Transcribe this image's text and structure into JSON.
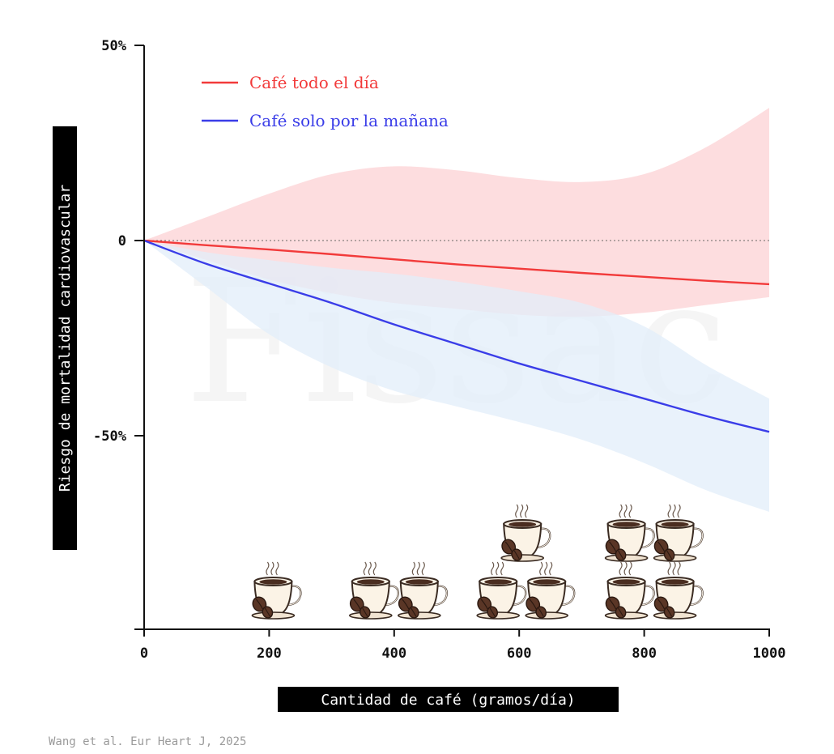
{
  "chart_data": {
    "type": "line",
    "xlabel": "Cantidad de café (gramos/día)",
    "ylabel": "Riesgo de mortalidad cardiovascular",
    "xlim": [
      0,
      1000
    ],
    "ylim": [
      -100,
      50
    ],
    "x_ticks": [
      0,
      200,
      400,
      600,
      800,
      1000
    ],
    "x_tick_labels": [
      "0",
      "200",
      "400",
      "600",
      "800",
      "1000"
    ],
    "y_ticks": [
      50,
      0,
      -50
    ],
    "y_tick_labels": [
      "50%",
      "0",
      "-50%"
    ],
    "reference_line": 0,
    "legend_position": "top-left",
    "series": [
      {
        "name": "Café todo el día",
        "color": "#f23a3a",
        "band_color": "#fdd9db",
        "x": [
          0,
          100,
          200,
          300,
          400,
          500,
          600,
          700,
          800,
          900,
          1000
        ],
        "values": [
          0,
          -1.2,
          -2.3,
          -3.5,
          -4.8,
          -6.1,
          -7.2,
          -8.3,
          -9.3,
          -10.3,
          -11.2
        ],
        "lower": [
          0,
          -5,
          -10,
          -13.5,
          -16,
          -17.5,
          -19,
          -19.5,
          -18.5,
          -16.5,
          -14.5
        ],
        "upper": [
          0,
          6,
          12,
          17,
          19,
          18,
          16,
          15,
          17,
          24,
          34
        ]
      },
      {
        "name": "Café solo por la mañana",
        "color": "#3a3de8",
        "band_color": "#e1edfa",
        "x": [
          0,
          100,
          200,
          300,
          400,
          500,
          600,
          700,
          800,
          900,
          1000
        ],
        "values": [
          0,
          -6,
          -11,
          -16,
          -21.5,
          -26.5,
          -31.5,
          -36,
          -40.5,
          -45,
          -49
        ],
        "lower": [
          0,
          -12,
          -24,
          -32.5,
          -38.5,
          -42.5,
          -46.5,
          -51,
          -57,
          -64,
          -69.5
        ],
        "upper": [
          0,
          -3,
          -5,
          -7,
          -8.5,
          -10.5,
          -13,
          -16,
          -22,
          -32,
          -40.5
        ]
      }
    ],
    "cup_groups": [
      {
        "x": 200,
        "cups": 1
      },
      {
        "x": 400,
        "cups": 2
      },
      {
        "x": 600,
        "cups": 3
      },
      {
        "x": 800,
        "cups": 4
      }
    ],
    "watermark": "Fissac",
    "source": "Wang et al. Eur Heart J, 2025"
  }
}
